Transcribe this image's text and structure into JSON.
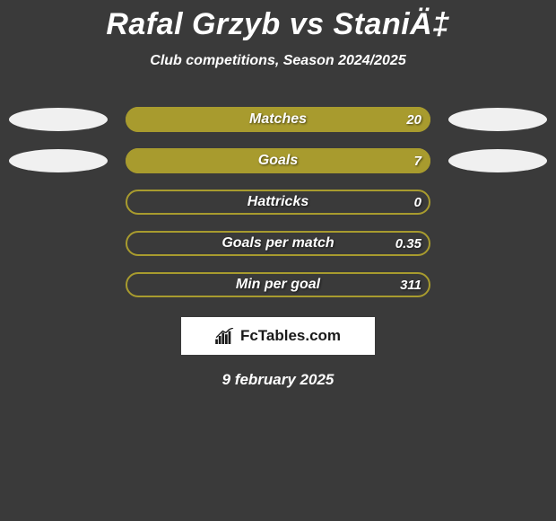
{
  "title": "Rafal Grzyb vs StaniÄ‡",
  "subtitle": "Club competitions, Season 2024/2025",
  "bar_color": "#a89b2e",
  "bar_border_color": "#a89b2e",
  "bars": [
    {
      "label": "Matches",
      "value": "20",
      "fill_pct": 100,
      "left_ellipse": true,
      "right_ellipse": true
    },
    {
      "label": "Goals",
      "value": "7",
      "fill_pct": 100,
      "left_ellipse": true,
      "right_ellipse": true
    },
    {
      "label": "Hattricks",
      "value": "0",
      "fill_pct": 0,
      "left_ellipse": false,
      "right_ellipse": false
    },
    {
      "label": "Goals per match",
      "value": "0.35",
      "fill_pct": 0,
      "left_ellipse": false,
      "right_ellipse": false
    },
    {
      "label": "Min per goal",
      "value": "311",
      "fill_pct": 0,
      "left_ellipse": false,
      "right_ellipse": false
    }
  ],
  "logo_text": "FcTables.com",
  "date": "9 february 2025",
  "background_color": "#3a3a3a",
  "text_color": "#ffffff"
}
